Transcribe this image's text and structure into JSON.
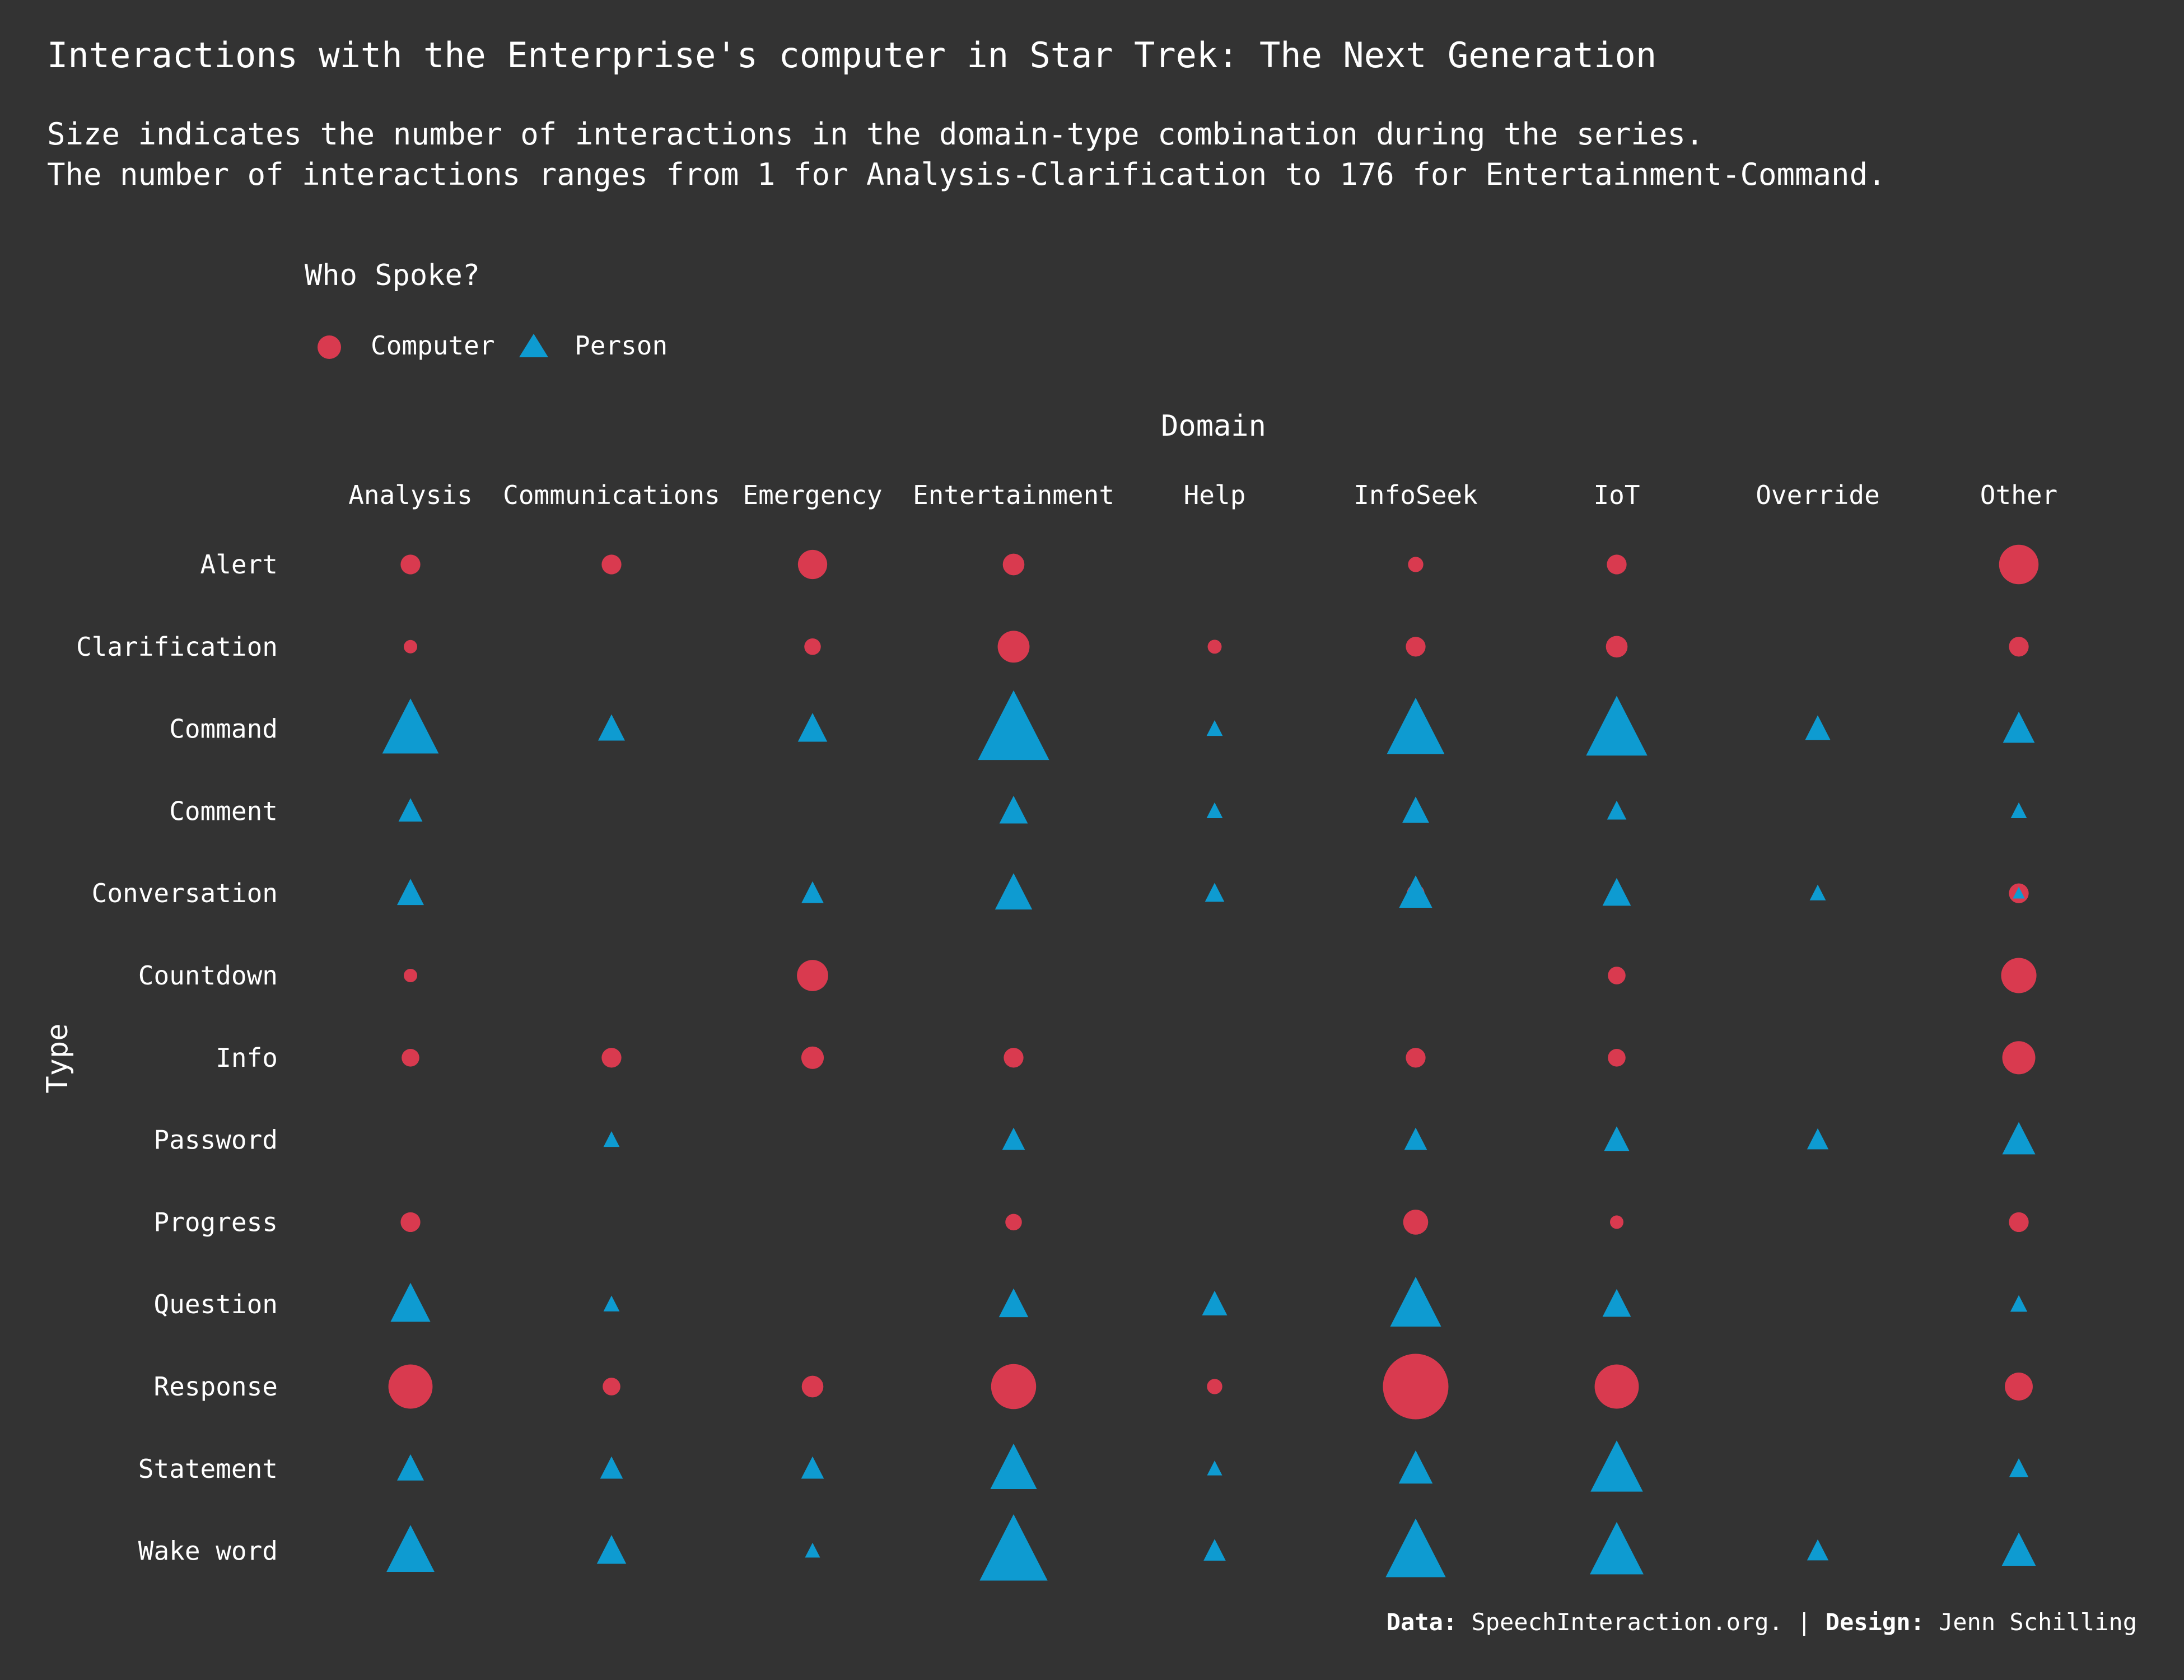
{
  "title": "Interactions with the Enterprise's computer in Star Trek: The Next Generation",
  "subtitle_line1": "Size indicates the number of interactions in the domain-type combination during the series.",
  "subtitle_line2": "The number of interactions ranges from 1 for Analysis-Clarification to 176 for Entertainment-Command.",
  "legend": {
    "title": "Who Spoke?",
    "computer_label": "Computer",
    "person_label": "Person",
    "computer_icon": "circle-icon",
    "person_icon": "triangle-icon"
  },
  "caption": {
    "data_label": "Data:",
    "data_value": "SpeechInteraction.org.",
    "separator": "|",
    "design_label": "Design:",
    "design_value": "Jenn Schilling"
  },
  "colors": {
    "background": "#333333",
    "computer": "#D93A4F",
    "person": "#0E9BD1",
    "text": "#FFFFFF"
  },
  "chart_data": {
    "type": "scatter",
    "xlabel": "Domain",
    "ylabel": "Type",
    "x_categories": [
      "Analysis",
      "Communications",
      "Emergency",
      "Entertainment",
      "Help",
      "InfoSeek",
      "IoT",
      "Override",
      "Other"
    ],
    "y_categories": [
      "Alert",
      "Clarification",
      "Command",
      "Comment",
      "Conversation",
      "Countdown",
      "Info",
      "Password",
      "Progress",
      "Question",
      "Response",
      "Statement",
      "Wake word"
    ],
    "size_range": [
      1,
      176
    ],
    "legend_position": "top-left",
    "series": [
      {
        "name": "Computer",
        "marker": "circle",
        "points": [
          {
            "domain": "Analysis",
            "type": "Alert",
            "value": 10
          },
          {
            "domain": "Communications",
            "type": "Alert",
            "value": 10
          },
          {
            "domain": "Emergency",
            "type": "Alert",
            "value": 22
          },
          {
            "domain": "Entertainment",
            "type": "Alert",
            "value": 12
          },
          {
            "domain": "InfoSeek",
            "type": "Alert",
            "value": 6
          },
          {
            "domain": "IoT",
            "type": "Alert",
            "value": 10
          },
          {
            "domain": "Other",
            "type": "Alert",
            "value": 40
          },
          {
            "domain": "Analysis",
            "type": "Clarification",
            "value": 1
          },
          {
            "domain": "Emergency",
            "type": "Clarification",
            "value": 7
          },
          {
            "domain": "Entertainment",
            "type": "Clarification",
            "value": 26
          },
          {
            "domain": "Help",
            "type": "Clarification",
            "value": 5
          },
          {
            "domain": "InfoSeek",
            "type": "Clarification",
            "value": 10
          },
          {
            "domain": "IoT",
            "type": "Clarification",
            "value": 12
          },
          {
            "domain": "Other",
            "type": "Clarification",
            "value": 10
          },
          {
            "domain": "Entertainment",
            "type": "Conversation",
            "value": 8
          },
          {
            "domain": "InfoSeek",
            "type": "Conversation",
            "value": 8
          },
          {
            "domain": "Other",
            "type": "Conversation",
            "value": 10
          },
          {
            "domain": "Analysis",
            "type": "Countdown",
            "value": 3
          },
          {
            "domain": "Emergency",
            "type": "Countdown",
            "value": 25
          },
          {
            "domain": "IoT",
            "type": "Countdown",
            "value": 8
          },
          {
            "domain": "Other",
            "type": "Countdown",
            "value": 32
          },
          {
            "domain": "Analysis",
            "type": "Info",
            "value": 8
          },
          {
            "domain": "Communications",
            "type": "Info",
            "value": 10
          },
          {
            "domain": "Emergency",
            "type": "Info",
            "value": 13
          },
          {
            "domain": "Entertainment",
            "type": "Info",
            "value": 10
          },
          {
            "domain": "InfoSeek",
            "type": "Info",
            "value": 10
          },
          {
            "domain": "IoT",
            "type": "Info",
            "value": 8
          },
          {
            "domain": "Other",
            "type": "Info",
            "value": 28
          },
          {
            "domain": "Analysis",
            "type": "Progress",
            "value": 10
          },
          {
            "domain": "Entertainment",
            "type": "Progress",
            "value": 7
          },
          {
            "domain": "InfoSeek",
            "type": "Progress",
            "value": 16
          },
          {
            "domain": "IoT",
            "type": "Progress",
            "value": 3
          },
          {
            "domain": "Other",
            "type": "Progress",
            "value": 10
          },
          {
            "domain": "Analysis",
            "type": "Response",
            "value": 50
          },
          {
            "domain": "Communications",
            "type": "Response",
            "value": 8
          },
          {
            "domain": "Emergency",
            "type": "Response",
            "value": 12
          },
          {
            "domain": "Entertainment",
            "type": "Response",
            "value": 52
          },
          {
            "domain": "Help",
            "type": "Response",
            "value": 6
          },
          {
            "domain": "InfoSeek",
            "type": "Response",
            "value": 110
          },
          {
            "domain": "IoT",
            "type": "Response",
            "value": 50
          },
          {
            "domain": "Other",
            "type": "Response",
            "value": 20
          }
        ]
      },
      {
        "name": "Person",
        "marker": "triangle",
        "points": [
          {
            "domain": "Analysis",
            "type": "Command",
            "value": 110
          },
          {
            "domain": "Communications",
            "type": "Command",
            "value": 25
          },
          {
            "domain": "Emergency",
            "type": "Command",
            "value": 30
          },
          {
            "domain": "Entertainment",
            "type": "Command",
            "value": 176
          },
          {
            "domain": "Help",
            "type": "Command",
            "value": 9
          },
          {
            "domain": "InfoSeek",
            "type": "Command",
            "value": 115
          },
          {
            "domain": "IoT",
            "type": "Command",
            "value": 130
          },
          {
            "domain": "Override",
            "type": "Command",
            "value": 22
          },
          {
            "domain": "Other",
            "type": "Command",
            "value": 35
          },
          {
            "domain": "Analysis",
            "type": "Comment",
            "value": 20
          },
          {
            "domain": "Entertainment",
            "type": "Comment",
            "value": 28
          },
          {
            "domain": "Help",
            "type": "Comment",
            "value": 9
          },
          {
            "domain": "InfoSeek",
            "type": "Comment",
            "value": 25
          },
          {
            "domain": "IoT",
            "type": "Comment",
            "value": 13
          },
          {
            "domain": "Other",
            "type": "Comment",
            "value": 9
          },
          {
            "domain": "Analysis",
            "type": "Conversation",
            "value": 25
          },
          {
            "domain": "Emergency",
            "type": "Conversation",
            "value": 17
          },
          {
            "domain": "Entertainment",
            "type": "Conversation",
            "value": 48
          },
          {
            "domain": "Help",
            "type": "Conversation",
            "value": 13
          },
          {
            "domain": "InfoSeek",
            "type": "Conversation",
            "value": 38
          },
          {
            "domain": "IoT",
            "type": "Conversation",
            "value": 28
          },
          {
            "domain": "Override",
            "type": "Conversation",
            "value": 9
          },
          {
            "domain": "Other",
            "type": "Conversation",
            "value": 5
          },
          {
            "domain": "Communications",
            "type": "Password",
            "value": 9
          },
          {
            "domain": "Entertainment",
            "type": "Password",
            "value": 18
          },
          {
            "domain": "InfoSeek",
            "type": "Password",
            "value": 18
          },
          {
            "domain": "IoT",
            "type": "Password",
            "value": 22
          },
          {
            "domain": "Override",
            "type": "Password",
            "value": 16
          },
          {
            "domain": "Other",
            "type": "Password",
            "value": 38
          },
          {
            "domain": "Analysis",
            "type": "Question",
            "value": 55
          },
          {
            "domain": "Communications",
            "type": "Question",
            "value": 9
          },
          {
            "domain": "Entertainment",
            "type": "Question",
            "value": 30
          },
          {
            "domain": "Help",
            "type": "Question",
            "value": 22
          },
          {
            "domain": "InfoSeek",
            "type": "Question",
            "value": 90
          },
          {
            "domain": "IoT",
            "type": "Question",
            "value": 28
          },
          {
            "domain": "Other",
            "type": "Question",
            "value": 10
          },
          {
            "domain": "Analysis",
            "type": "Statement",
            "value": 25
          },
          {
            "domain": "Communications",
            "type": "Statement",
            "value": 18
          },
          {
            "domain": "Emergency",
            "type": "Statement",
            "value": 18
          },
          {
            "domain": "Entertainment",
            "type": "Statement",
            "value": 75
          },
          {
            "domain": "Help",
            "type": "Statement",
            "value": 8
          },
          {
            "domain": "InfoSeek",
            "type": "Statement",
            "value": 40
          },
          {
            "domain": "IoT",
            "type": "Statement",
            "value": 95
          },
          {
            "domain": "Other",
            "type": "Statement",
            "value": 13
          },
          {
            "domain": "Analysis",
            "type": "Wake word",
            "value": 80
          },
          {
            "domain": "Communications",
            "type": "Wake word",
            "value": 30
          },
          {
            "domain": "Emergency",
            "type": "Wake word",
            "value": 8
          },
          {
            "domain": "Entertainment",
            "type": "Wake word",
            "value": 160
          },
          {
            "domain": "Help",
            "type": "Wake word",
            "value": 17
          },
          {
            "domain": "InfoSeek",
            "type": "Wake word",
            "value": 125
          },
          {
            "domain": "IoT",
            "type": "Wake word",
            "value": 100
          },
          {
            "domain": "Override",
            "type": "Wake word",
            "value": 16
          },
          {
            "domain": "Other",
            "type": "Wake word",
            "value": 40
          }
        ]
      }
    ]
  }
}
